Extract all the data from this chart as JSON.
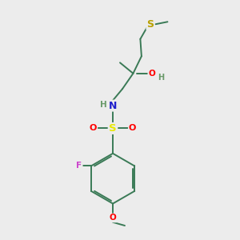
{
  "background_color": "#ececec",
  "bond_color": "#3a7a56",
  "atom_colors": {
    "S_sulfide": "#b8a000",
    "S_sulfonamide": "#e8e800",
    "N": "#2020cc",
    "O": "#ff0000",
    "F": "#cc44cc",
    "H": "#6a9a6a",
    "C": "#3a7a56"
  },
  "figsize": [
    3.0,
    3.0
  ],
  "dpi": 100
}
